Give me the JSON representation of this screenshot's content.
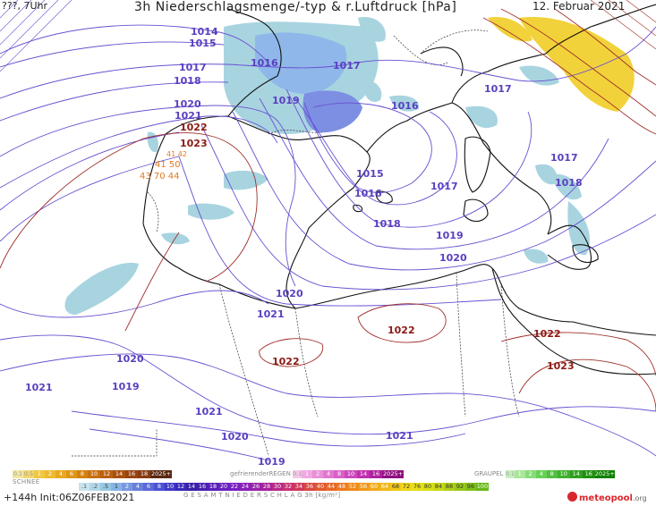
{
  "header": {
    "left": "???, 7Uhr",
    "title": "3h Niederschlagsmenge/-typ & r.Luftdruck [hPa]",
    "date": "12. Februar 2021"
  },
  "isobars": {
    "blue": [
      {
        "id": "b1014",
        "text": "1014"
      },
      {
        "id": "b1015",
        "text": "1015"
      },
      {
        "id": "b1016a",
        "text": "1016"
      },
      {
        "id": "b1017a",
        "text": "1017"
      },
      {
        "id": "b1017b",
        "text": "1017"
      },
      {
        "id": "b1018a",
        "text": "1018"
      },
      {
        "id": "b1019a",
        "text": "1019"
      },
      {
        "id": "b1016b",
        "text": "1016"
      },
      {
        "id": "b1017c",
        "text": "1017"
      },
      {
        "id": "b1020a",
        "text": "1020"
      },
      {
        "id": "b1021a",
        "text": "1021"
      },
      {
        "id": "b1015b",
        "text": "1015"
      },
      {
        "id": "b1016c",
        "text": "1016"
      },
      {
        "id": "b1017d",
        "text": "1017"
      },
      {
        "id": "b1017e",
        "text": "1017"
      },
      {
        "id": "b1018b",
        "text": "1018"
      },
      {
        "id": "b1018c",
        "text": "1018"
      },
      {
        "id": "b1019b",
        "text": "1019"
      },
      {
        "id": "b1020b",
        "text": "1020"
      },
      {
        "id": "b1020c",
        "text": "1020"
      },
      {
        "id": "b1021b",
        "text": "1021"
      },
      {
        "id": "b1020d",
        "text": "1020"
      },
      {
        "id": "b1019c",
        "text": "1019"
      },
      {
        "id": "b1021c",
        "text": "1021"
      },
      {
        "id": "b1021d",
        "text": "1021"
      },
      {
        "id": "b1020e",
        "text": "1020"
      },
      {
        "id": "b1019d",
        "text": "1019"
      },
      {
        "id": "b1021e",
        "text": "1021"
      }
    ],
    "red": [
      {
        "id": "r1022a",
        "text": "1022"
      },
      {
        "id": "r1023a",
        "text": "1023"
      },
      {
        "id": "r1022b",
        "text": "1022"
      },
      {
        "id": "r1022c",
        "text": "1022"
      },
      {
        "id": "r1022d",
        "text": "1022"
      },
      {
        "id": "r1023b",
        "text": "1023"
      }
    ],
    "orange": [
      {
        "id": "o1",
        "text": "41 50"
      },
      {
        "id": "o2",
        "text": "43 70 44"
      },
      {
        "id": "o3",
        "text": "41 42"
      }
    ]
  },
  "legend": {
    "snow": {
      "label": "SCHNEE",
      "values": [
        "0.1",
        "0.5",
        "1",
        "2",
        "4",
        "6",
        "8",
        "10",
        "12",
        "14",
        "16",
        "18",
        "2025+"
      ]
    },
    "freezing_rain": {
      "label": "gefrierenderREGEN",
      "values": [
        "0.1",
        "1",
        "2",
        "4",
        "8",
        "10",
        "14",
        "16",
        "2025+"
      ]
    },
    "graupel": {
      "label": "GRAUPEL",
      "values": [
        "0.1",
        "1",
        "2",
        "4",
        "8",
        "10",
        "14",
        "16",
        "2025+"
      ]
    },
    "total": {
      "values": [
        ".1",
        ".2",
        ".5",
        "1",
        "2",
        "4",
        "6",
        "8",
        "10",
        "12",
        "14",
        "16",
        "18",
        "20",
        "22",
        "24",
        "26",
        "28",
        "30",
        "32",
        "34",
        "36",
        "40",
        "44",
        "48",
        "52",
        "56",
        "60",
        "64",
        "68",
        "72",
        "76",
        "80",
        "84",
        "88",
        "92",
        "96",
        "100"
      ],
      "label": "G E S A M T N I E D E R S C H L A G   3h  [kg/m²]"
    }
  },
  "footer": {
    "run": "+144h  Init:06Z06FEB2021",
    "brand": "meteopool",
    "brand_suffix": ".org"
  },
  "colors": {
    "blue_isobar": "#6a4fd0",
    "red_isobar": "#a0302a",
    "precip_light": "#a8d4e0",
    "precip_mid": "#8cb6e8",
    "precip_heavy": "#7a8fe6",
    "snow": "#f2d23a",
    "coast": "#111111"
  }
}
